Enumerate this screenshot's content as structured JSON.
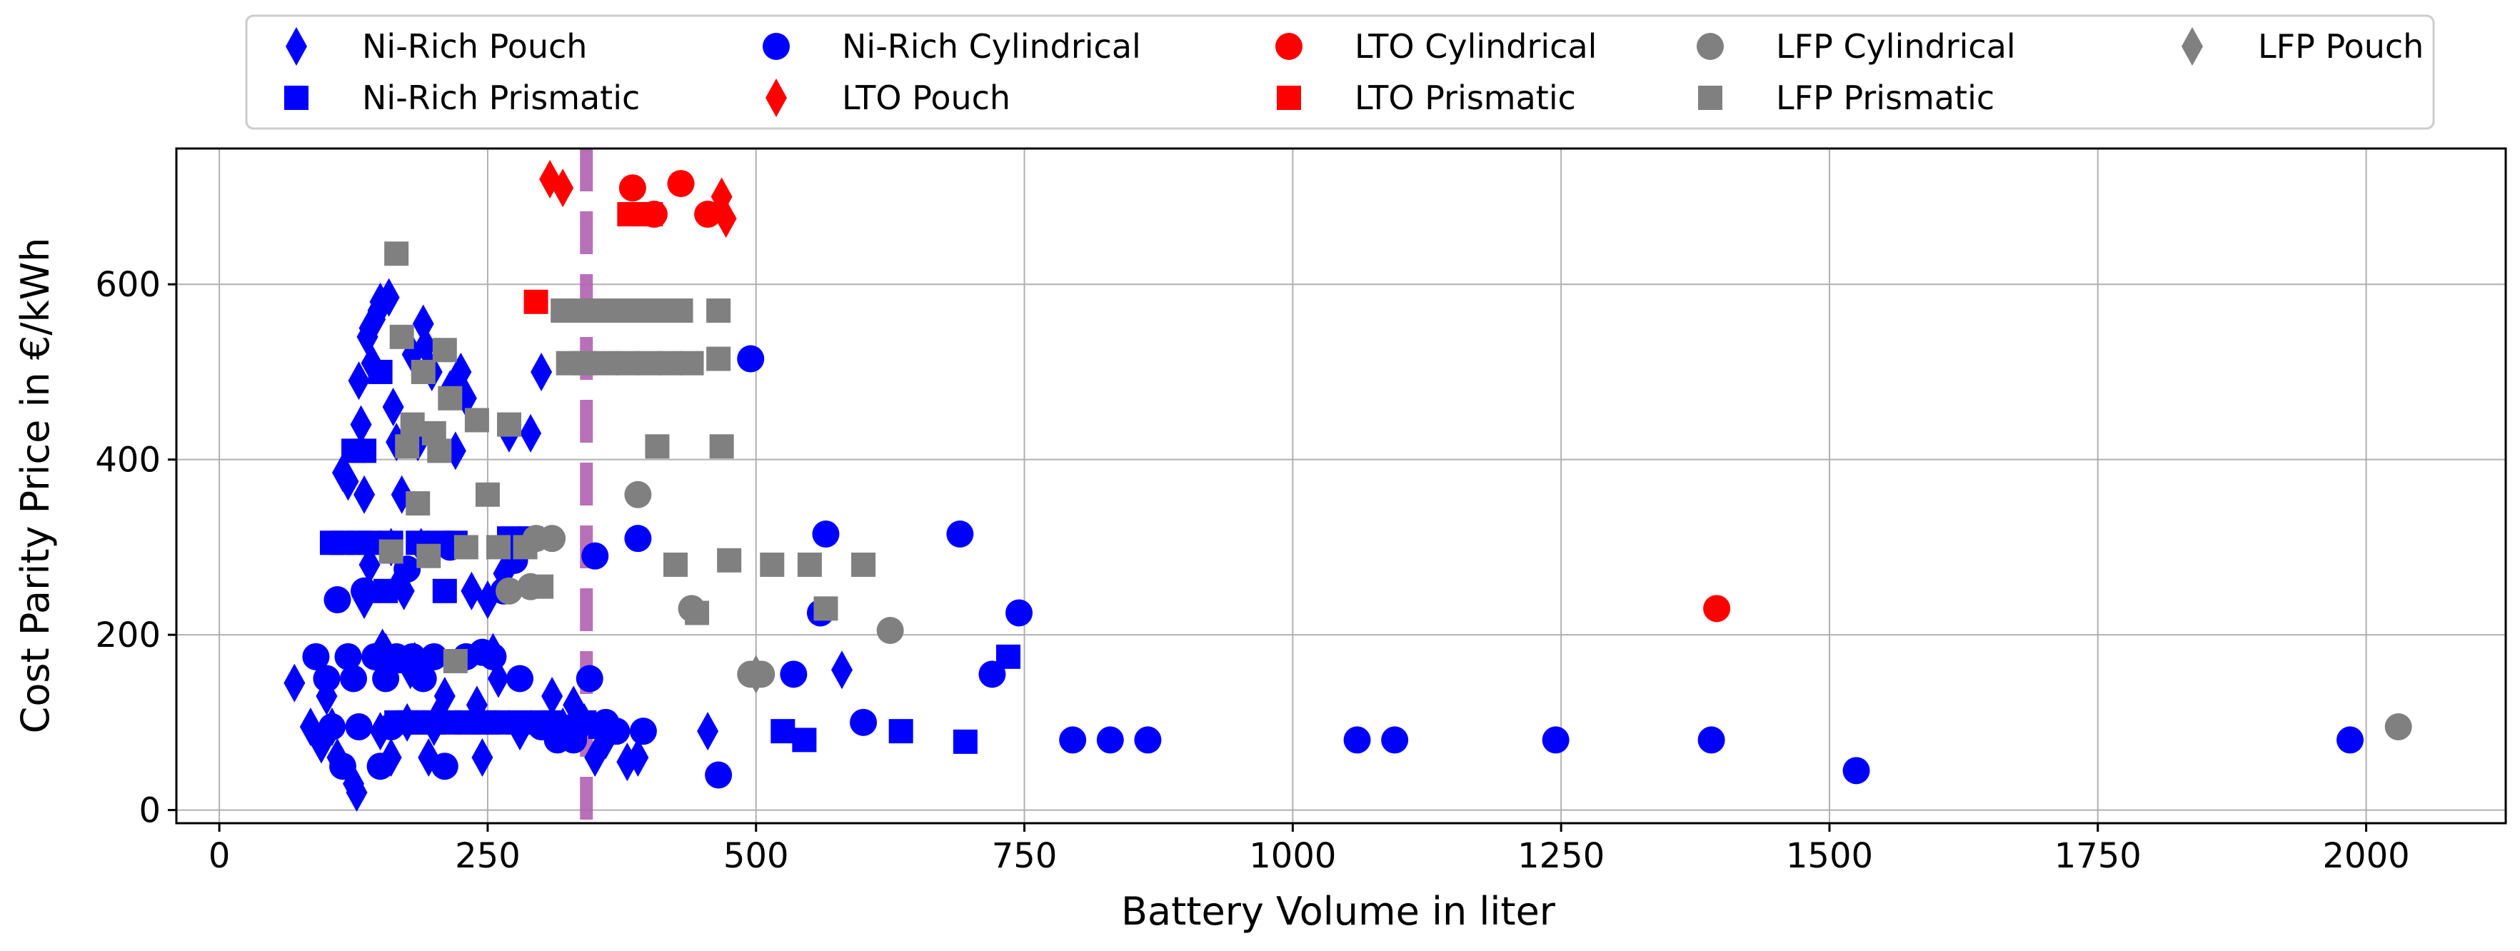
{
  "chart_data": {
    "type": "scatter",
    "title": "",
    "xlabel": "Battery Volume in liter",
    "ylabel": "Cost Parity Price in €/kWh",
    "xlim": [
      -40,
      2130
    ],
    "ylim": [
      -15,
      755
    ],
    "xticks": [
      0,
      250,
      500,
      750,
      1000,
      1250,
      1500,
      1750,
      2000
    ],
    "yticks": [
      0,
      200,
      400,
      600
    ],
    "grid": true,
    "legend_position": "top",
    "legend_columns": 5,
    "vertical_reference_line": {
      "x": 342,
      "color": "#b061b0",
      "style": "dashed"
    },
    "series": [
      {
        "name": "Ni-Rich Pouch",
        "marker": "diamond",
        "color": "#0000ff",
        "points": [
          [
            70,
            145
          ],
          [
            85,
            95
          ],
          [
            95,
            75
          ],
          [
            100,
            130
          ],
          [
            105,
            95
          ],
          [
            110,
            60
          ],
          [
            115,
            385
          ],
          [
            120,
            375
          ],
          [
            125,
            30
          ],
          [
            128,
            20
          ],
          [
            130,
            490
          ],
          [
            132,
            440
          ],
          [
            135,
            360
          ],
          [
            138,
            540
          ],
          [
            140,
            550
          ],
          [
            142,
            510
          ],
          [
            145,
            560
          ],
          [
            148,
            570
          ],
          [
            150,
            580
          ],
          [
            152,
            185
          ],
          [
            155,
            180
          ],
          [
            158,
            585
          ],
          [
            160,
            300
          ],
          [
            162,
            460
          ],
          [
            165,
            420
          ],
          [
            168,
            260
          ],
          [
            170,
            360
          ],
          [
            172,
            250
          ],
          [
            175,
            100
          ],
          [
            178,
            160
          ],
          [
            180,
            520
          ],
          [
            182,
            170
          ],
          [
            185,
            420
          ],
          [
            188,
            300
          ],
          [
            190,
            555
          ],
          [
            192,
            530
          ],
          [
            195,
            60
          ],
          [
            198,
            500
          ],
          [
            200,
            95
          ],
          [
            205,
            110
          ],
          [
            210,
            130
          ],
          [
            215,
            480
          ],
          [
            220,
            410
          ],
          [
            225,
            500
          ],
          [
            230,
            470
          ],
          [
            235,
            250
          ],
          [
            240,
            120
          ],
          [
            245,
            60
          ],
          [
            250,
            240
          ],
          [
            255,
            180
          ],
          [
            260,
            150
          ],
          [
            265,
            270
          ],
          [
            270,
            430
          ],
          [
            280,
            90
          ],
          [
            290,
            430
          ],
          [
            300,
            500
          ],
          [
            310,
            130
          ],
          [
            320,
            95
          ],
          [
            330,
            120
          ],
          [
            340,
            100
          ],
          [
            350,
            60
          ],
          [
            360,
            80
          ],
          [
            380,
            55
          ],
          [
            390,
            60
          ],
          [
            455,
            90
          ],
          [
            580,
            160
          ],
          [
            135,
            240
          ],
          [
            140,
            280
          ],
          [
            150,
            90
          ],
          [
            160,
            60
          ]
        ]
      },
      {
        "name": "Ni-Rich Prismatic",
        "marker": "square",
        "color": "#0000ff",
        "points": [
          [
            105,
            305
          ],
          [
            115,
            305
          ],
          [
            125,
            410
          ],
          [
            130,
            305
          ],
          [
            135,
            410
          ],
          [
            140,
            305
          ],
          [
            150,
            500
          ],
          [
            155,
            250
          ],
          [
            160,
            305
          ],
          [
            165,
            100
          ],
          [
            170,
            170
          ],
          [
            175,
            100
          ],
          [
            180,
            100
          ],
          [
            185,
            305
          ],
          [
            190,
            100
          ],
          [
            200,
            100
          ],
          [
            205,
            305
          ],
          [
            210,
            250
          ],
          [
            215,
            100
          ],
          [
            220,
            305
          ],
          [
            230,
            100
          ],
          [
            240,
            100
          ],
          [
            250,
            100
          ],
          [
            260,
            100
          ],
          [
            270,
            310
          ],
          [
            280,
            100
          ],
          [
            290,
            310
          ],
          [
            300,
            100
          ],
          [
            310,
            100
          ],
          [
            330,
            95
          ],
          [
            340,
            100
          ],
          [
            355,
            95
          ],
          [
            525,
            90
          ],
          [
            545,
            80
          ],
          [
            635,
            90
          ],
          [
            695,
            78
          ],
          [
            735,
            175
          ]
        ]
      },
      {
        "name": "Ni-Rich Cylindrical",
        "marker": "circle",
        "color": "#0000ff",
        "points": [
          [
            90,
            175
          ],
          [
            100,
            150
          ],
          [
            105,
            95
          ],
          [
            110,
            240
          ],
          [
            115,
            50
          ],
          [
            120,
            175
          ],
          [
            125,
            150
          ],
          [
            130,
            95
          ],
          [
            135,
            250
          ],
          [
            145,
            175
          ],
          [
            150,
            50
          ],
          [
            155,
            150
          ],
          [
            160,
            95
          ],
          [
            165,
            175
          ],
          [
            175,
            275
          ],
          [
            180,
            175
          ],
          [
            190,
            150
          ],
          [
            200,
            175
          ],
          [
            210,
            50
          ],
          [
            215,
            300
          ],
          [
            230,
            175
          ],
          [
            245,
            180
          ],
          [
            255,
            175
          ],
          [
            265,
            250
          ],
          [
            275,
            285
          ],
          [
            280,
            150
          ],
          [
            300,
            95
          ],
          [
            315,
            80
          ],
          [
            330,
            80
          ],
          [
            345,
            150
          ],
          [
            350,
            290
          ],
          [
            360,
            100
          ],
          [
            370,
            90
          ],
          [
            390,
            310
          ],
          [
            395,
            90
          ],
          [
            465,
            40
          ],
          [
            495,
            515
          ],
          [
            535,
            155
          ],
          [
            560,
            225
          ],
          [
            565,
            315
          ],
          [
            600,
            100
          ],
          [
            690,
            315
          ],
          [
            720,
            155
          ],
          [
            745,
            225
          ],
          [
            795,
            80
          ],
          [
            830,
            80
          ],
          [
            865,
            80
          ],
          [
            1060,
            80
          ],
          [
            1095,
            80
          ],
          [
            1245,
            80
          ],
          [
            1390,
            80
          ],
          [
            1525,
            45
          ],
          [
            1985,
            80
          ]
        ]
      },
      {
        "name": "LTO Pouch",
        "marker": "diamond",
        "color": "#ff0000",
        "points": [
          [
            308,
            720
          ],
          [
            320,
            710
          ],
          [
            468,
            700
          ],
          [
            472,
            675
          ]
        ]
      },
      {
        "name": "LTO Cylindrical",
        "marker": "circle",
        "color": "#ff0000",
        "points": [
          [
            385,
            710
          ],
          [
            405,
            680
          ],
          [
            430,
            715
          ],
          [
            455,
            680
          ],
          [
            1395,
            230
          ]
        ]
      },
      {
        "name": "LTO Prismatic",
        "marker": "square",
        "color": "#ff0000",
        "points": [
          [
            295,
            580
          ],
          [
            382,
            680
          ],
          [
            392,
            680
          ],
          [
            402,
            680
          ]
        ]
      },
      {
        "name": "LFP Cylindrical",
        "marker": "circle",
        "color": "#808080",
        "points": [
          [
            270,
            250
          ],
          [
            290,
            255
          ],
          [
            295,
            310
          ],
          [
            310,
            310
          ],
          [
            390,
            360
          ],
          [
            440,
            230
          ],
          [
            495,
            155
          ],
          [
            505,
            155
          ],
          [
            625,
            205
          ],
          [
            2030,
            95
          ]
        ]
      },
      {
        "name": "LFP Prismatic",
        "marker": "square",
        "color": "#808080",
        "points": [
          [
            160,
            295
          ],
          [
            165,
            635
          ],
          [
            170,
            540
          ],
          [
            175,
            415
          ],
          [
            180,
            440
          ],
          [
            185,
            350
          ],
          [
            190,
            500
          ],
          [
            195,
            290
          ],
          [
            200,
            430
          ],
          [
            205,
            410
          ],
          [
            210,
            525
          ],
          [
            215,
            470
          ],
          [
            220,
            170
          ],
          [
            230,
            300
          ],
          [
            240,
            445
          ],
          [
            250,
            360
          ],
          [
            260,
            300
          ],
          [
            270,
            440
          ],
          [
            285,
            300
          ],
          [
            300,
            255
          ],
          [
            320,
            570
          ],
          [
            325,
            510
          ],
          [
            335,
            570
          ],
          [
            340,
            510
          ],
          [
            350,
            570
          ],
          [
            360,
            510
          ],
          [
            370,
            570
          ],
          [
            380,
            510
          ],
          [
            390,
            570
          ],
          [
            400,
            510
          ],
          [
            410,
            570
          ],
          [
            420,
            510
          ],
          [
            430,
            570
          ],
          [
            440,
            510
          ],
          [
            408,
            415
          ],
          [
            425,
            280
          ],
          [
            445,
            225
          ],
          [
            468,
            415
          ],
          [
            475,
            285
          ],
          [
            515,
            280
          ],
          [
            550,
            280
          ],
          [
            565,
            230
          ],
          [
            600,
            280
          ],
          [
            465,
            570
          ],
          [
            465,
            515
          ]
        ]
      },
      {
        "name": "LFP Pouch",
        "marker": "diamond",
        "color": "#808080",
        "points": [
          [
            500,
            155
          ]
        ]
      }
    ]
  }
}
